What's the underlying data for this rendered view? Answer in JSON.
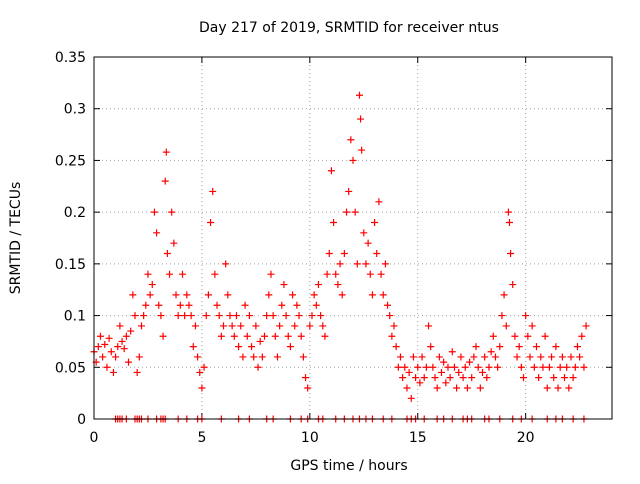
{
  "chart_data": {
    "type": "scatter",
    "title": "Day 217 of 2019, SRMTID for receiver ntus",
    "xlabel": "GPS time / hours",
    "ylabel": "SRMTID / TECUs",
    "xlim": [
      0,
      24
    ],
    "ylim": [
      0,
      0.35
    ],
    "x_ticks": [
      0,
      5,
      10,
      15,
      20
    ],
    "x_tick_labels": [
      "0",
      "5",
      "10",
      "15",
      "20"
    ],
    "y_ticks": [
      0,
      0.05,
      0.1,
      0.15,
      0.2,
      0.25,
      0.3,
      0.35
    ],
    "y_tick_labels": [
      "0",
      "0.05",
      "0.1",
      "0.15",
      "0.2",
      "0.25",
      "0.3",
      "0.35"
    ],
    "grid": true,
    "marker": "+",
    "series_color": "#ff0000",
    "series": [
      {
        "name": "SRMTID",
        "points": [
          [
            0.0,
            0.065
          ],
          [
            0.1,
            0.055
          ],
          [
            0.2,
            0.07
          ],
          [
            0.3,
            0.08
          ],
          [
            0.4,
            0.06
          ],
          [
            0.5,
            0.072
          ],
          [
            0.6,
            0.05
          ],
          [
            0.7,
            0.078
          ],
          [
            0.8,
            0.065
          ],
          [
            0.9,
            0.045
          ],
          [
            1.0,
            0.06
          ],
          [
            1.1,
            0.07
          ],
          [
            1.2,
            0.09
          ],
          [
            1.3,
            0.075
          ],
          [
            1.4,
            0.068
          ],
          [
            1.5,
            0.08
          ],
          [
            1.6,
            0.055
          ],
          [
            1.7,
            0.085
          ],
          [
            1.8,
            0.12
          ],
          [
            1.9,
            0.1
          ],
          [
            2.0,
            0.045
          ],
          [
            2.1,
            0.06
          ],
          [
            2.2,
            0.09
          ],
          [
            2.3,
            0.1
          ],
          [
            2.4,
            0.11
          ],
          [
            2.5,
            0.14
          ],
          [
            2.6,
            0.12
          ],
          [
            2.7,
            0.13
          ],
          [
            2.8,
            0.2
          ],
          [
            2.9,
            0.18
          ],
          [
            3.0,
            0.11
          ],
          [
            3.1,
            0.1
          ],
          [
            3.2,
            0.08
          ],
          [
            3.3,
            0.23
          ],
          [
            3.35,
            0.258
          ],
          [
            3.4,
            0.16
          ],
          [
            3.5,
            0.14
          ],
          [
            3.6,
            0.2
          ],
          [
            3.7,
            0.17
          ],
          [
            3.8,
            0.12
          ],
          [
            3.9,
            0.1
          ],
          [
            4.0,
            0.11
          ],
          [
            4.1,
            0.14
          ],
          [
            4.2,
            0.1
          ],
          [
            4.3,
            0.12
          ],
          [
            4.4,
            0.11
          ],
          [
            4.5,
            0.1
          ],
          [
            4.6,
            0.07
          ],
          [
            4.7,
            0.09
          ],
          [
            4.8,
            0.06
          ],
          [
            4.9,
            0.045
          ],
          [
            5.0,
            0.03
          ],
          [
            5.1,
            0.05
          ],
          [
            5.2,
            0.1
          ],
          [
            5.3,
            0.12
          ],
          [
            5.4,
            0.19
          ],
          [
            5.5,
            0.22
          ],
          [
            5.6,
            0.14
          ],
          [
            5.7,
            0.11
          ],
          [
            5.8,
            0.1
          ],
          [
            5.9,
            0.08
          ],
          [
            6.0,
            0.09
          ],
          [
            6.1,
            0.15
          ],
          [
            6.2,
            0.12
          ],
          [
            6.3,
            0.1
          ],
          [
            6.4,
            0.09
          ],
          [
            6.5,
            0.08
          ],
          [
            6.6,
            0.1
          ],
          [
            6.7,
            0.07
          ],
          [
            6.8,
            0.09
          ],
          [
            6.9,
            0.06
          ],
          [
            7.0,
            0.11
          ],
          [
            7.1,
            0.08
          ],
          [
            7.2,
            0.1
          ],
          [
            7.3,
            0.07
          ],
          [
            7.4,
            0.06
          ],
          [
            7.5,
            0.09
          ],
          [
            7.6,
            0.05
          ],
          [
            7.7,
            0.075
          ],
          [
            7.8,
            0.06
          ],
          [
            7.9,
            0.08
          ],
          [
            8.0,
            0.1
          ],
          [
            8.1,
            0.12
          ],
          [
            8.2,
            0.14
          ],
          [
            8.3,
            0.1
          ],
          [
            8.4,
            0.08
          ],
          [
            8.5,
            0.06
          ],
          [
            8.6,
            0.09
          ],
          [
            8.7,
            0.11
          ],
          [
            8.8,
            0.13
          ],
          [
            8.9,
            0.1
          ],
          [
            9.0,
            0.08
          ],
          [
            9.1,
            0.07
          ],
          [
            9.2,
            0.12
          ],
          [
            9.3,
            0.09
          ],
          [
            9.4,
            0.11
          ],
          [
            9.5,
            0.1
          ],
          [
            9.6,
            0.08
          ],
          [
            9.7,
            0.06
          ],
          [
            9.8,
            0.04
          ],
          [
            9.9,
            0.03
          ],
          [
            10.0,
            0.09
          ],
          [
            10.1,
            0.1
          ],
          [
            10.2,
            0.12
          ],
          [
            10.3,
            0.11
          ],
          [
            10.4,
            0.13
          ],
          [
            10.5,
            0.1
          ],
          [
            10.6,
            0.09
          ],
          [
            10.7,
            0.08
          ],
          [
            10.8,
            0.14
          ],
          [
            10.9,
            0.16
          ],
          [
            11.0,
            0.24
          ],
          [
            11.1,
            0.19
          ],
          [
            11.2,
            0.14
          ],
          [
            11.3,
            0.13
          ],
          [
            11.4,
            0.15
          ],
          [
            11.5,
            0.12
          ],
          [
            11.6,
            0.16
          ],
          [
            11.7,
            0.2
          ],
          [
            11.8,
            0.22
          ],
          [
            11.9,
            0.27
          ],
          [
            12.0,
            0.25
          ],
          [
            12.1,
            0.2
          ],
          [
            12.2,
            0.15
          ],
          [
            12.3,
            0.313
          ],
          [
            12.35,
            0.29
          ],
          [
            12.4,
            0.26
          ],
          [
            12.5,
            0.18
          ],
          [
            12.6,
            0.15
          ],
          [
            12.7,
            0.17
          ],
          [
            12.8,
            0.14
          ],
          [
            12.9,
            0.12
          ],
          [
            13.0,
            0.19
          ],
          [
            13.1,
            0.16
          ],
          [
            13.2,
            0.21
          ],
          [
            13.3,
            0.14
          ],
          [
            13.4,
            0.12
          ],
          [
            13.5,
            0.15
          ],
          [
            13.6,
            0.11
          ],
          [
            13.7,
            0.1
          ],
          [
            13.8,
            0.08
          ],
          [
            13.9,
            0.09
          ],
          [
            14.0,
            0.07
          ],
          [
            14.1,
            0.05
          ],
          [
            14.2,
            0.06
          ],
          [
            14.3,
            0.04
          ],
          [
            14.4,
            0.05
          ],
          [
            14.5,
            0.03
          ],
          [
            14.6,
            0.045
          ],
          [
            14.7,
            0.02
          ],
          [
            14.8,
            0.06
          ],
          [
            14.9,
            0.04
          ],
          [
            15.0,
            0.05
          ],
          [
            15.1,
            0.035
          ],
          [
            15.2,
            0.06
          ],
          [
            15.3,
            0.04
          ],
          [
            15.4,
            0.05
          ],
          [
            15.5,
            0.09
          ],
          [
            15.6,
            0.07
          ],
          [
            15.7,
            0.05
          ],
          [
            15.8,
            0.04
          ],
          [
            15.9,
            0.03
          ],
          [
            16.0,
            0.06
          ],
          [
            16.1,
            0.045
          ],
          [
            16.2,
            0.055
          ],
          [
            16.3,
            0.035
          ],
          [
            16.4,
            0.05
          ],
          [
            16.5,
            0.04
          ],
          [
            16.6,
            0.065
          ],
          [
            16.7,
            0.05
          ],
          [
            16.8,
            0.03
          ],
          [
            16.9,
            0.045
          ],
          [
            17.0,
            0.06
          ],
          [
            17.1,
            0.04
          ],
          [
            17.2,
            0.05
          ],
          [
            17.3,
            0.03
          ],
          [
            17.4,
            0.055
          ],
          [
            17.5,
            0.04
          ],
          [
            17.6,
            0.06
          ],
          [
            17.7,
            0.07
          ],
          [
            17.8,
            0.05
          ],
          [
            17.9,
            0.03
          ],
          [
            18.0,
            0.045
          ],
          [
            18.1,
            0.06
          ],
          [
            18.2,
            0.04
          ],
          [
            18.3,
            0.05
          ],
          [
            18.4,
            0.065
          ],
          [
            18.5,
            0.08
          ],
          [
            18.6,
            0.06
          ],
          [
            18.7,
            0.05
          ],
          [
            18.8,
            0.07
          ],
          [
            18.9,
            0.1
          ],
          [
            19.0,
            0.12
          ],
          [
            19.1,
            0.09
          ],
          [
            19.2,
            0.2
          ],
          [
            19.25,
            0.19
          ],
          [
            19.3,
            0.16
          ],
          [
            19.4,
            0.13
          ],
          [
            19.5,
            0.08
          ],
          [
            19.6,
            0.06
          ],
          [
            19.7,
            0.07
          ],
          [
            19.8,
            0.05
          ],
          [
            19.9,
            0.04
          ],
          [
            20.0,
            0.1
          ],
          [
            20.1,
            0.08
          ],
          [
            20.2,
            0.06
          ],
          [
            20.3,
            0.09
          ],
          [
            20.4,
            0.05
          ],
          [
            20.5,
            0.07
          ],
          [
            20.6,
            0.04
          ],
          [
            20.7,
            0.06
          ],
          [
            20.8,
            0.05
          ],
          [
            20.9,
            0.08
          ],
          [
            21.0,
            0.03
          ],
          [
            21.1,
            0.05
          ],
          [
            21.2,
            0.06
          ],
          [
            21.3,
            0.04
          ],
          [
            21.4,
            0.07
          ],
          [
            21.5,
            0.03
          ],
          [
            21.6,
            0.05
          ],
          [
            21.7,
            0.06
          ],
          [
            21.8,
            0.04
          ],
          [
            21.9,
            0.05
          ],
          [
            22.0,
            0.03
          ],
          [
            22.1,
            0.06
          ],
          [
            22.2,
            0.04
          ],
          [
            22.3,
            0.05
          ],
          [
            22.4,
            0.07
          ],
          [
            22.5,
            0.06
          ],
          [
            22.6,
            0.08
          ],
          [
            22.7,
            0.05
          ],
          [
            22.8,
            0.09
          ]
        ],
        "zero_points": [
          1.0,
          1.1,
          1.2,
          1.3,
          1.5,
          1.9,
          2.0,
          2.1,
          2.2,
          2.5,
          2.9,
          3.1,
          3.2,
          3.3,
          3.9,
          4.3,
          4.8,
          5.0,
          5.9,
          6.7,
          7.2,
          8.0,
          8.3,
          9.1,
          9.6,
          9.9,
          10.4,
          10.6,
          11.2,
          11.6,
          12.0,
          12.3,
          12.6,
          12.9,
          13.4,
          13.8,
          14.5,
          14.7,
          14.9,
          15.3,
          15.9,
          16.2,
          16.6,
          17.1,
          17.3,
          17.5,
          18.1,
          18.3,
          18.8,
          19.4,
          19.8,
          20.3,
          21.0,
          21.4,
          21.7,
          22.2,
          22.7
        ]
      }
    ]
  }
}
